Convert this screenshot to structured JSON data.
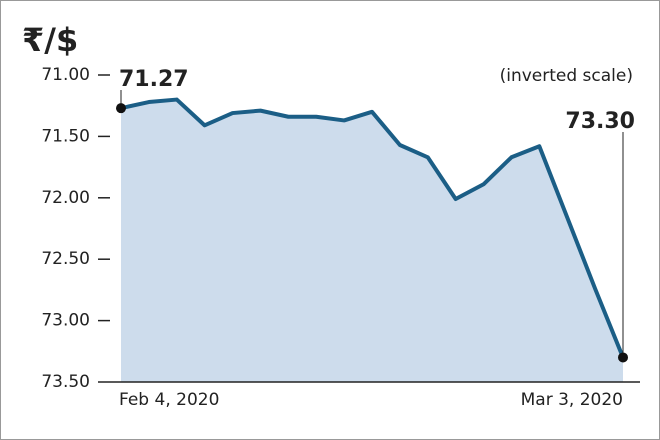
{
  "chart_data": {
    "type": "area",
    "title": "₹/$",
    "subtitle": "(inverted scale)",
    "categories": [
      "Feb 4, 2020",
      null,
      null,
      null,
      null,
      null,
      null,
      null,
      null,
      null,
      null,
      null,
      null,
      null,
      null,
      null,
      null,
      null,
      "Mar 3, 2020"
    ],
    "values": [
      71.27,
      71.22,
      71.2,
      71.41,
      71.31,
      71.29,
      71.34,
      71.34,
      71.37,
      71.3,
      71.57,
      71.67,
      72.01,
      71.89,
      71.67,
      71.58,
      72.16,
      72.74,
      73.3
    ],
    "value_labels": [
      "71.27",
      null,
      null,
      null,
      null,
      null,
      null,
      null,
      null,
      null,
      null,
      null,
      null,
      null,
      null,
      null,
      null,
      null,
      "73.30"
    ],
    "color": "#1b5e86",
    "fill_color": "#cddcec",
    "inverted": true,
    "ylim": [
      71,
      73.5
    ],
    "yticks": [
      {
        "value": 71,
        "label": "71.00"
      },
      {
        "value": 71.5,
        "label": "71.50"
      },
      {
        "value": 72,
        "label": "72.00"
      },
      {
        "value": 72.5,
        "label": "72.50"
      },
      {
        "value": 73,
        "label": "73.00"
      },
      {
        "value": 73.5,
        "label": "73.50"
      }
    ]
  }
}
